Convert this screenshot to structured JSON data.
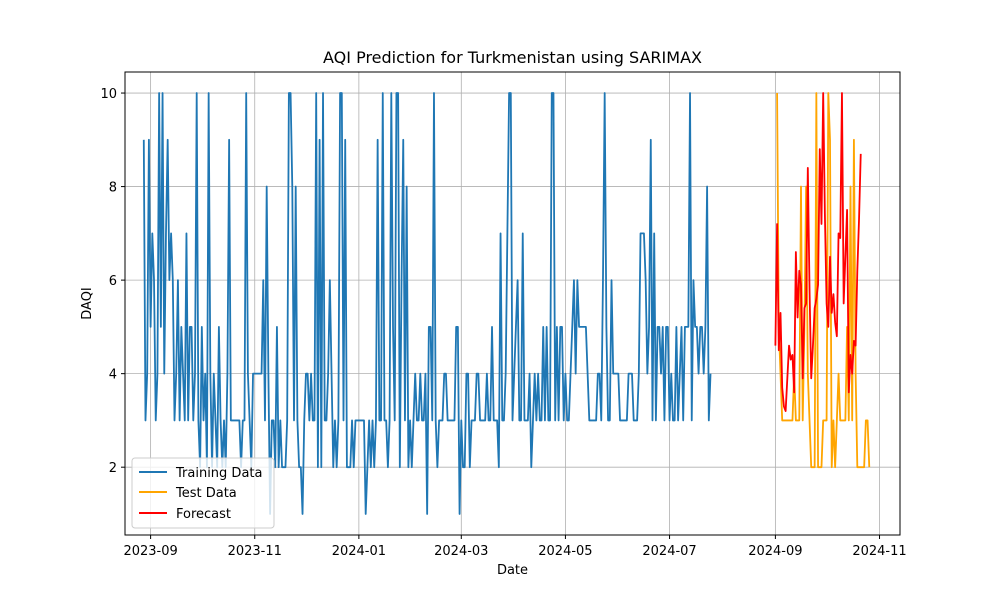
{
  "chart_data": {
    "type": "line",
    "title": "AQI Prediction for Turkmenistan using SARIMAX",
    "xlabel": "Date",
    "ylabel": "DAQI",
    "x_range": [
      "2023-08-17",
      "2024-11-13"
    ],
    "ylim": [
      0.55,
      10.45
    ],
    "x_ticks": [
      {
        "date": "2023-09-01",
        "label": "2023-09"
      },
      {
        "date": "2023-11-01",
        "label": "2023-11"
      },
      {
        "date": "2024-01-01",
        "label": "2024-01"
      },
      {
        "date": "2024-03-01",
        "label": "2024-03"
      },
      {
        "date": "2024-05-01",
        "label": "2024-05"
      },
      {
        "date": "2024-07-01",
        "label": "2024-07"
      },
      {
        "date": "2024-09-01",
        "label": "2024-09"
      },
      {
        "date": "2024-11-01",
        "label": "2024-11"
      }
    ],
    "y_ticks": [
      2,
      4,
      6,
      8,
      10
    ],
    "grid": true,
    "legend_position": "lower-left",
    "series": [
      {
        "name": "Training Data",
        "color": "#1f77b4",
        "start_date": "2023-08-28",
        "values": [
          9,
          3,
          4,
          9,
          5,
          7,
          6,
          3,
          4,
          10,
          5,
          10,
          4,
          7,
          9,
          6,
          7,
          6,
          3,
          4,
          6,
          3,
          5,
          4,
          3,
          7,
          3,
          5,
          5,
          3,
          4,
          10,
          3,
          2,
          5,
          3,
          4,
          2,
          10,
          4,
          2,
          4,
          3,
          2,
          5,
          3,
          2,
          3,
          2,
          4,
          9,
          3,
          3,
          3,
          3,
          3,
          3,
          2,
          3,
          3,
          10,
          4,
          3,
          2,
          4,
          4,
          4,
          4,
          4,
          4,
          6,
          3,
          8,
          4,
          1,
          3,
          3,
          2,
          5,
          2,
          3,
          2,
          2,
          2,
          3,
          10,
          10,
          8,
          3,
          8,
          3,
          2,
          2,
          1,
          3,
          4,
          4,
          3,
          4,
          3,
          3,
          10,
          2,
          9,
          2,
          10,
          3,
          3,
          4,
          6,
          4,
          2,
          3,
          2,
          3,
          10,
          10,
          3,
          9,
          2,
          2,
          2,
          3,
          2,
          3,
          3,
          3,
          3,
          3,
          3,
          1,
          2,
          3,
          2,
          3,
          2,
          3,
          9,
          3,
          3,
          10,
          3,
          3,
          2,
          3,
          10,
          5,
          3,
          10,
          10,
          2,
          6,
          9,
          3,
          8,
          2,
          3,
          2,
          3,
          4,
          3,
          3,
          4,
          3,
          3,
          4,
          1,
          5,
          5,
          3,
          10,
          3,
          2,
          3,
          3,
          3,
          4,
          4,
          3,
          3,
          3,
          3,
          3,
          5,
          5,
          1,
          3,
          2,
          2,
          4,
          4,
          2,
          3,
          3,
          3,
          4,
          4,
          3,
          3,
          3,
          3,
          4,
          3,
          3,
          5,
          3,
          3,
          3,
          2,
          7,
          3,
          3,
          4,
          7,
          10,
          10,
          3,
          4,
          5,
          6,
          3,
          3,
          7,
          3,
          3,
          3,
          4,
          2,
          3,
          4,
          3,
          4,
          3,
          3,
          5,
          3,
          5,
          3,
          3,
          10,
          10,
          3,
          5,
          3,
          5,
          5,
          3,
          4,
          3,
          3,
          4,
          5,
          6,
          4,
          6,
          5,
          5,
          5,
          5,
          5,
          4,
          3,
          3,
          3,
          3,
          3,
          4,
          4,
          3,
          6,
          10,
          5,
          3,
          3,
          6,
          4,
          4,
          4,
          4,
          3,
          3,
          3,
          3,
          3,
          4,
          4,
          4,
          3,
          3,
          3,
          4,
          7,
          7,
          7,
          6,
          4,
          5,
          9,
          3,
          7,
          3,
          5,
          5,
          4,
          5,
          3,
          5,
          5,
          3,
          4,
          3,
          3,
          5,
          3,
          4,
          5,
          3,
          5,
          5,
          5,
          10,
          3,
          6,
          5,
          5,
          4,
          5,
          5,
          4,
          5,
          8,
          3,
          4
        ]
      },
      {
        "name": "Test Data",
        "color": "#ffa500",
        "start_date": "2024-09-02",
        "values": [
          10,
          5,
          4,
          3,
          3,
          3,
          3,
          3,
          3,
          3,
          4,
          3,
          3,
          3,
          8,
          3,
          5,
          8,
          4,
          3,
          2,
          2,
          2,
          10,
          2,
          2,
          2,
          3,
          3,
          3,
          10,
          9,
          2,
          3,
          2,
          3,
          4,
          3,
          3,
          3,
          3,
          5,
          3,
          8,
          3,
          9,
          4,
          2,
          2,
          2,
          2,
          2,
          3,
          3,
          2
        ]
      },
      {
        "name": "Forecast",
        "color": "#ff0000",
        "start_date": "2024-09-01",
        "values": [
          4.6,
          7.2,
          4.5,
          5.3,
          3.7,
          3.3,
          3.2,
          3.9,
          4.6,
          4.3,
          4.4,
          3.6,
          6.6,
          5.2,
          6.2,
          5.9,
          3.9,
          5.4,
          5.5,
          8.4,
          5.8,
          3.9,
          4.6,
          5.4,
          5.6,
          5.9,
          8.8,
          7.2,
          10,
          7.4,
          5.5,
          5.0,
          6.5,
          5.3,
          5.7,
          5.1,
          4.8,
          7.0,
          6.9,
          10,
          5.5,
          6.5,
          7.5,
          3.6,
          4.4,
          4.0,
          4.7,
          4.6,
          6.2,
          7.3,
          8.7
        ]
      }
    ]
  }
}
